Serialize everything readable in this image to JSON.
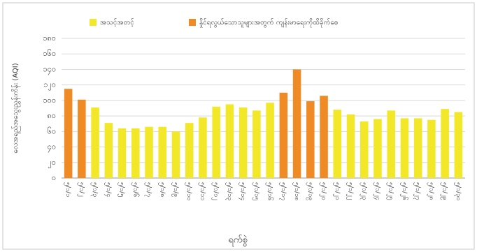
{
  "chart_data": {
    "type": "bar",
    "x_label": "ရက်စွဲ",
    "y_label": "လေအရည်အသွေးညွှန်းကိန်း (AQI)",
    "categories": [
      "၅/၁/၁",
      "၅/၁/၂",
      "၅/၁/၃",
      "၅/၁/၄",
      "၅/၁/၅",
      "၅/၁/၆",
      "၅/၁/၇",
      "၅/၁/၈",
      "၅/၁/၉",
      "၅/၁/၁၀",
      "၅/၁/၁၁",
      "၅/၁/၁၂",
      "၅/၁/၁၃",
      "၅/၁/၁၄",
      "၅/၁/၁၅",
      "၅/၁/၁၆",
      "၅/၁/၁၇",
      "၅/၁/၁၈",
      "၅/၁/၁၉",
      "၅/၁/၂၀",
      "၅/၁/၂၁",
      "၅/၁/၂၂",
      "၅/၁/၂၃",
      "၅/၁/၂၄",
      "၅/၁/၂၅",
      "၅/၁/၂၆",
      "၅/၁/၂၇",
      "၅/၁/၂၈",
      "၅/၁/၂၉",
      "၅/၁/၃၀"
    ],
    "series": [
      {
        "name": "အသင့်အတင့်",
        "color": "#f2e829",
        "values": [
          null,
          null,
          91,
          71,
          64,
          64,
          66,
          66,
          60,
          71,
          78,
          92,
          95,
          91,
          87,
          97,
          null,
          null,
          null,
          null,
          88,
          82,
          73,
          76,
          87,
          77,
          77,
          75,
          89,
          85
        ]
      },
      {
        "name": "နှိုင်ရလွယ်သောသူများအတွက် ကျန်းမာရေးကိုထိခိုက်စေ",
        "color": "#f08a24",
        "values": [
          115,
          101,
          null,
          null,
          null,
          null,
          null,
          null,
          null,
          null,
          null,
          null,
          null,
          null,
          null,
          null,
          110,
          140,
          99,
          106,
          null,
          null,
          null,
          null,
          null,
          null,
          null,
          null,
          null,
          null
        ]
      }
    ],
    "ylim": [
      0,
      180
    ],
    "yticks": [
      {
        "value": 0,
        "label": "၀"
      },
      {
        "value": 20,
        "label": "၂၀"
      },
      {
        "value": 40,
        "label": "၄၀"
      },
      {
        "value": 60,
        "label": "၆၀"
      },
      {
        "value": 80,
        "label": "၈၀"
      },
      {
        "value": 100,
        "label": "၁၀၀"
      },
      {
        "value": 120,
        "label": "၁၂၀"
      },
      {
        "value": 140,
        "label": "၁၄၀"
      },
      {
        "value": 160,
        "label": "၁၆၀"
      },
      {
        "value": 180,
        "label": "၁၈၀"
      }
    ],
    "grid": true
  }
}
